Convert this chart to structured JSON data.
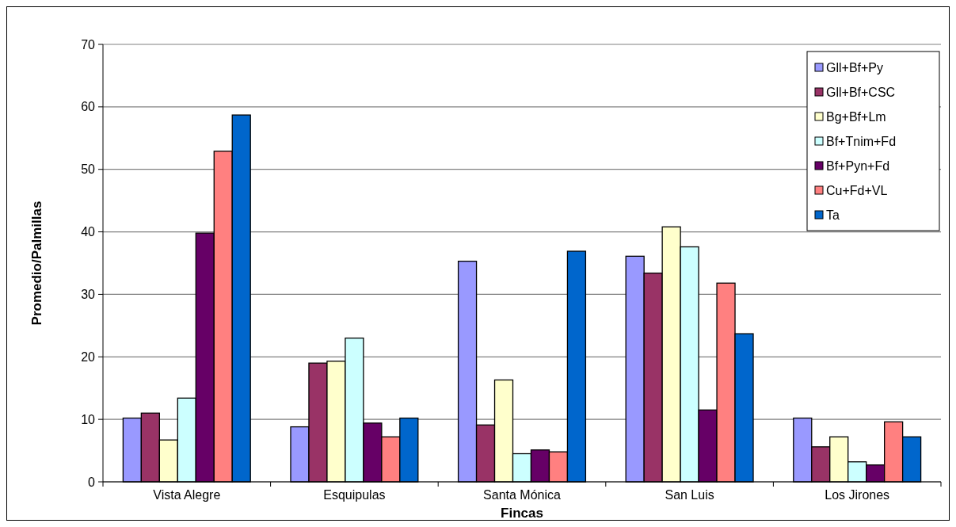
{
  "chart_data": {
    "type": "bar",
    "xlabel": "Fincas",
    "ylabel": "Promedio/Palmillas",
    "categories": [
      "Vista Alegre",
      "Esquipulas",
      "Santa Mónica",
      "San Luis",
      "Los Jirones"
    ],
    "series": [
      {
        "name": "Gll+Bf+Py",
        "color": "#9999ff",
        "values": [
          10.2,
          8.8,
          35.3,
          36.1,
          10.2
        ]
      },
      {
        "name": "Gll+Bf+CSC",
        "color": "#993366",
        "values": [
          11,
          19,
          9.1,
          33.4,
          5.6
        ]
      },
      {
        "name": "Bg+Bf+Lm",
        "color": "#ffffcc",
        "values": [
          6.7,
          19.3,
          16.3,
          40.8,
          7.2
        ]
      },
      {
        "name": "Bf+Tnim+Fd",
        "color": "#ccffff",
        "values": [
          13.4,
          23,
          4.5,
          37.6,
          3.2
        ]
      },
      {
        "name": "Bf+Pyn+Fd",
        "color": "#660066",
        "values": [
          39.8,
          9.4,
          5.1,
          11.5,
          2.7
        ]
      },
      {
        "name": "Cu+Fd+VL",
        "color": "#ff8080",
        "values": [
          52.9,
          7.2,
          4.8,
          31.8,
          9.6
        ]
      },
      {
        "name": "Ta",
        "color": "#0066cc",
        "values": [
          58.7,
          10.2,
          36.9,
          23.7,
          7.2
        ]
      }
    ],
    "ylim": [
      0,
      70
    ],
    "yticks": [
      0,
      10,
      20,
      30,
      40,
      50,
      60,
      70
    ],
    "grid": "y",
    "legend": "top right"
  }
}
